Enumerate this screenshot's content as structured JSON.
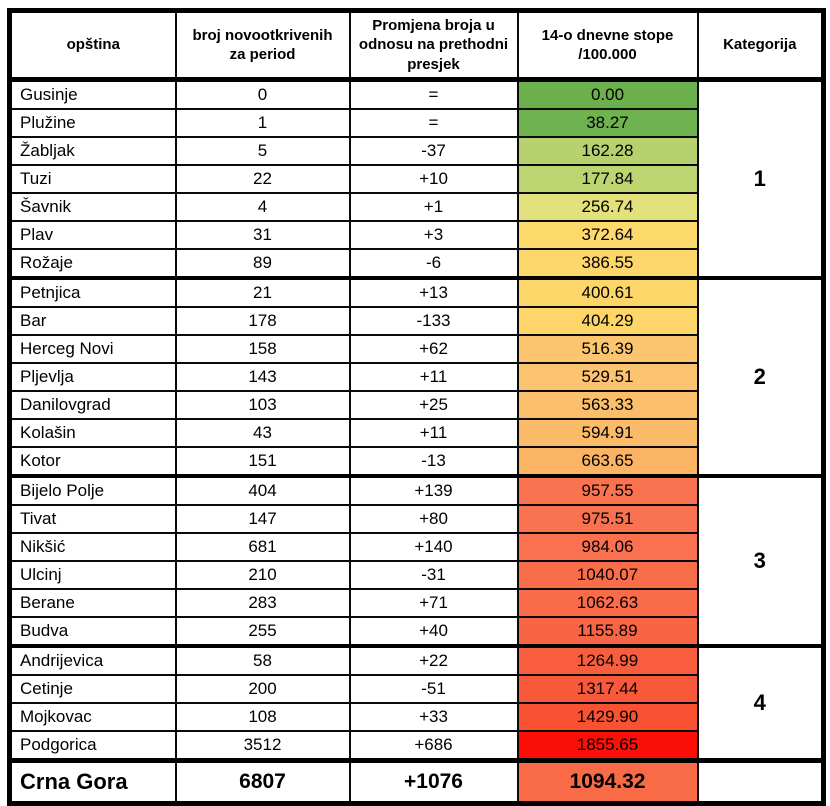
{
  "table": {
    "columns": [
      "opština",
      "broj novootkrivenih za period",
      "Promjena broja u odnosu na prethodni presjek",
      "14-o dnevne stope /100.000",
      "Kategorija"
    ],
    "groups": [
      {
        "category": "1",
        "rows": [
          {
            "name": "Gusinje",
            "count": "0",
            "change": "=",
            "rate": "0.00",
            "rate_color": "#6bb04d"
          },
          {
            "name": "Plužine",
            "count": "1",
            "change": "=",
            "rate": "38.27",
            "rate_color": "#6fb250"
          },
          {
            "name": "Žabljak",
            "count": "5",
            "change": "-37",
            "rate": "162.28",
            "rate_color": "#b7d16e"
          },
          {
            "name": "Tuzi",
            "count": "22",
            "change": "+10",
            "rate": "177.84",
            "rate_color": "#bdd471"
          },
          {
            "name": "Šavnik",
            "count": "4",
            "change": "+1",
            "rate": "256.74",
            "rate_color": "#e3e17c"
          },
          {
            "name": "Plav",
            "count": "31",
            "change": "+3",
            "rate": "372.64",
            "rate_color": "#fdd96c"
          },
          {
            "name": "Rožaje",
            "count": "89",
            "change": "-6",
            "rate": "386.55",
            "rate_color": "#fdd76b"
          }
        ]
      },
      {
        "category": "2",
        "rows": [
          {
            "name": "Petnjica",
            "count": "21",
            "change": "+13",
            "rate": "400.61",
            "rate_color": "#fdd66a"
          },
          {
            "name": "Bar",
            "count": "178",
            "change": "-133",
            "rate": "404.29",
            "rate_color": "#fdd569"
          },
          {
            "name": "Herceg Novi",
            "count": "158",
            "change": "+62",
            "rate": "516.39",
            "rate_color": "#fcc671"
          },
          {
            "name": "Pljevlja",
            "count": "143",
            "change": "+11",
            "rate": "529.51",
            "rate_color": "#fcc470"
          },
          {
            "name": "Danilovgrad",
            "count": "103",
            "change": "+25",
            "rate": "563.33",
            "rate_color": "#fbbf6c"
          },
          {
            "name": "Kolašin",
            "count": "43",
            "change": "+11",
            "rate": "594.91",
            "rate_color": "#fbbb69"
          },
          {
            "name": "Kotor",
            "count": "151",
            "change": "-13",
            "rate": "663.65",
            "rate_color": "#fbb364"
          }
        ]
      },
      {
        "category": "3",
        "rows": [
          {
            "name": "Bijelo Polje",
            "count": "404",
            "change": "+139",
            "rate": "957.55",
            "rate_color": "#f97351"
          },
          {
            "name": "Tivat",
            "count": "147",
            "change": "+80",
            "rate": "975.51",
            "rate_color": "#f97250"
          },
          {
            "name": "Nikšić",
            "count": "681",
            "change": "+140",
            "rate": "984.06",
            "rate_color": "#f9714f"
          },
          {
            "name": "Ulcinj",
            "count": "210",
            "change": "-31",
            "rate": "1040.07",
            "rate_color": "#f96d4b"
          },
          {
            "name": "Berane",
            "count": "283",
            "change": "+71",
            "rate": "1062.63",
            "rate_color": "#f96b49"
          },
          {
            "name": "Budva",
            "count": "255",
            "change": "+40",
            "rate": "1155.89",
            "rate_color": "#f86544"
          }
        ]
      },
      {
        "category": "4",
        "rows": [
          {
            "name": "Andrijevica",
            "count": "58",
            "change": "+22",
            "rate": "1264.99",
            "rate_color": "#f85d3e"
          },
          {
            "name": "Cetinje",
            "count": "200",
            "change": "-51",
            "rate": "1317.44",
            "rate_color": "#f8593a"
          },
          {
            "name": "Mojkovac",
            "count": "108",
            "change": "+33",
            "rate": "1429.90",
            "rate_color": "#f85232"
          },
          {
            "name": "Podgorica",
            "count": "3512",
            "change": "+686",
            "rate": "1855.65",
            "rate_color": "#fb0f06"
          }
        ]
      }
    ],
    "total": {
      "name": "Crna Gora",
      "count": "6807",
      "change": "+1076",
      "rate": "1094.32",
      "rate_color": "#f96b46"
    }
  },
  "chart_data": {
    "type": "table",
    "columns": [
      "opština",
      "broj novootkrivenih za period",
      "Promjena broja u odnosu na prethodni presjek",
      "14-o dnevne stope /100.000",
      "Kategorija"
    ],
    "rows": [
      [
        "Gusinje",
        0,
        "=",
        0.0,
        1
      ],
      [
        "Plužine",
        1,
        "=",
        38.27,
        1
      ],
      [
        "Žabljak",
        5,
        "-37",
        162.28,
        1
      ],
      [
        "Tuzi",
        22,
        "+10",
        177.84,
        1
      ],
      [
        "Šavnik",
        4,
        "+1",
        256.74,
        1
      ],
      [
        "Plav",
        31,
        "+3",
        372.64,
        1
      ],
      [
        "Rožaje",
        89,
        "-6",
        386.55,
        1
      ],
      [
        "Petnjica",
        21,
        "+13",
        400.61,
        2
      ],
      [
        "Bar",
        178,
        "-133",
        404.29,
        2
      ],
      [
        "Herceg Novi",
        158,
        "+62",
        516.39,
        2
      ],
      [
        "Pljevlja",
        143,
        "+11",
        529.51,
        2
      ],
      [
        "Danilovgrad",
        103,
        "+25",
        563.33,
        2
      ],
      [
        "Kolašin",
        43,
        "+11",
        594.91,
        2
      ],
      [
        "Kotor",
        151,
        "-13",
        663.65,
        2
      ],
      [
        "Bijelo Polje",
        404,
        "+139",
        957.55,
        3
      ],
      [
        "Tivat",
        147,
        "+80",
        975.51,
        3
      ],
      [
        "Nikšić",
        681,
        "+140",
        984.06,
        3
      ],
      [
        "Ulcinj",
        210,
        "-31",
        1040.07,
        3
      ],
      [
        "Berane",
        283,
        "+71",
        1062.63,
        3
      ],
      [
        "Budva",
        255,
        "+40",
        1155.89,
        3
      ],
      [
        "Andrijevica",
        58,
        "+22",
        1264.99,
        4
      ],
      [
        "Cetinje",
        200,
        "-51",
        1317.44,
        4
      ],
      [
        "Mojkovac",
        108,
        "+33",
        1429.9,
        4
      ],
      [
        "Podgorica",
        3512,
        "+686",
        1855.65,
        4
      ]
    ],
    "total_row": [
      "Crna Gora",
      6807,
      "+1076",
      1094.32
    ],
    "layout": {
      "rate_color_scale": [
        "#6bb04d",
        "#fdd66a",
        "#fb0f06"
      ],
      "grid": "on"
    }
  }
}
